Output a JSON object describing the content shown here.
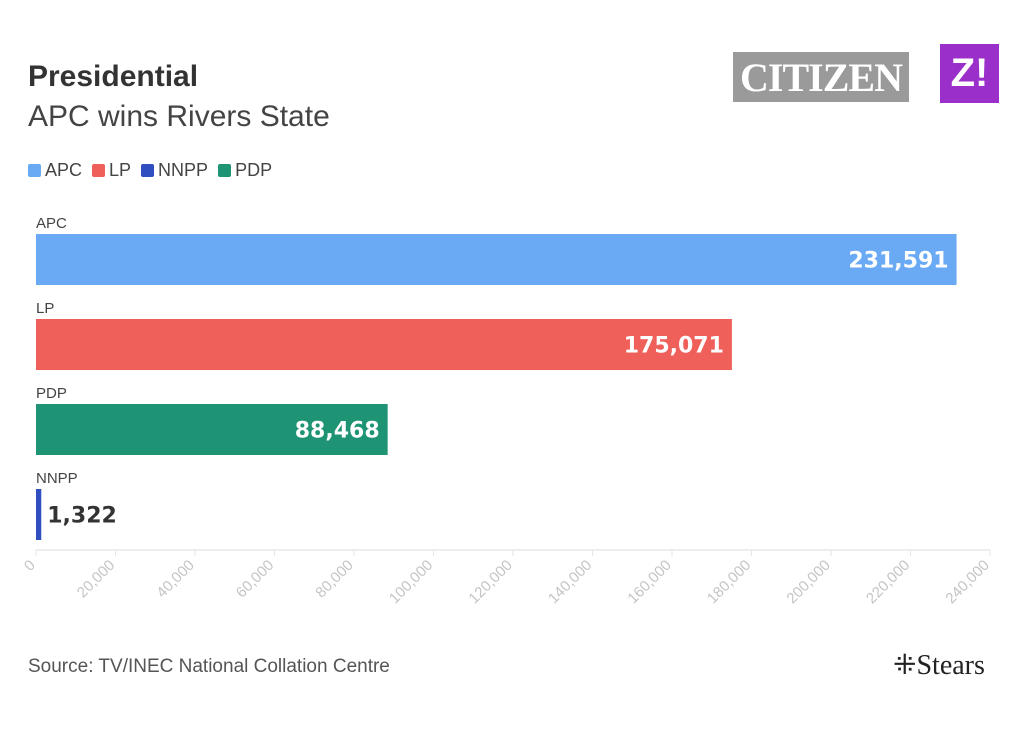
{
  "header": {
    "title": "Presidential",
    "subtitle": "APC wins Rivers State"
  },
  "logos": {
    "citizen": "CITIZEN",
    "z": "Z!",
    "stears": "Stears"
  },
  "legend": [
    {
      "label": "APC",
      "color": "#6aaaf5"
    },
    {
      "label": "LP",
      "color": "#f0605a"
    },
    {
      "label": "NNPP",
      "color": "#2f4fc0"
    },
    {
      "label": "PDP",
      "color": "#1f9474"
    }
  ],
  "source": "Source: TV/INEC National Collation Centre",
  "chart_data": {
    "type": "bar",
    "orientation": "horizontal",
    "title": "Presidential",
    "subtitle": "APC wins Rivers State",
    "categories": [
      "APC",
      "LP",
      "PDP",
      "NNPP"
    ],
    "values": [
      231591,
      175071,
      88468,
      1322
    ],
    "value_labels": [
      "231,591",
      "175,071",
      "88,468",
      "1,322"
    ],
    "colors": [
      "#6aaaf5",
      "#f0605a",
      "#1f9474",
      "#2f4fc0"
    ],
    "xlim": [
      0,
      240000
    ],
    "xticks": [
      0,
      20000,
      40000,
      60000,
      80000,
      100000,
      120000,
      140000,
      160000,
      180000,
      200000,
      220000,
      240000
    ],
    "xtick_labels": [
      "0",
      "20,000",
      "40,000",
      "60,000",
      "80,000",
      "100,000",
      "120,000",
      "140,000",
      "160,000",
      "180,000",
      "200,000",
      "220,000",
      "240,000"
    ],
    "legend_position": "top-left"
  }
}
